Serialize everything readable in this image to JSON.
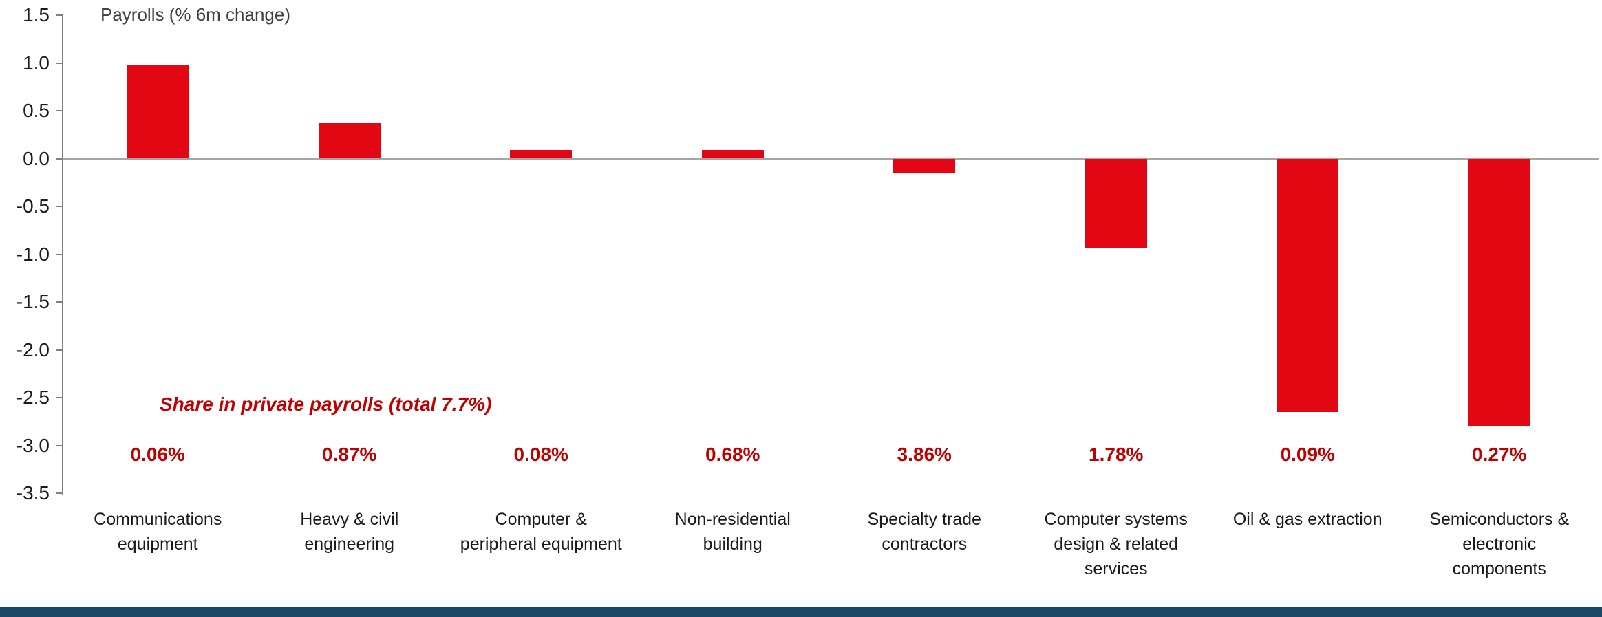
{
  "chart_data": {
    "type": "bar",
    "title": "Payrolls (% 6m change)",
    "categories": [
      "Communications equipment",
      "Heavy & civil engineering",
      "Computer & peripheral equipment",
      "Non-residential building",
      "Specialty trade contractors",
      "Computer systems design & related services",
      "Oil & gas extraction",
      "Semiconductors & electronic components"
    ],
    "category_lines": [
      [
        "Communications",
        "equipment"
      ],
      [
        "Heavy & civil",
        "engineering"
      ],
      [
        "Computer &",
        "peripheral equipment"
      ],
      [
        "Non-residential",
        "building"
      ],
      [
        "Specialty trade",
        "contractors"
      ],
      [
        "Computer systems",
        "design & related",
        "services"
      ],
      [
        "Oil & gas extraction"
      ],
      [
        "Semiconductors &",
        "electronic",
        "components"
      ]
    ],
    "values": [
      0.98,
      0.37,
      0.09,
      0.09,
      -0.15,
      -0.93,
      -2.65,
      -2.8
    ],
    "xlabel": "",
    "ylabel": "",
    "ylim": [
      -3.5,
      1.5
    ],
    "yticks": [
      1.5,
      1.0,
      0.5,
      0.0,
      -0.5,
      -1.0,
      -1.5,
      -2.0,
      -2.5,
      -3.0,
      -3.5
    ],
    "grid": false,
    "legend": "none",
    "bar_color": "#e30613",
    "annotation": "Share in private payrolls (total 7.7%)",
    "share_labels": [
      "0.06%",
      "0.87%",
      "0.08%",
      "0.68%",
      "3.86%",
      "1.78%",
      "0.09%",
      "0.27%"
    ],
    "share_color": "#c00000"
  },
  "footer": {
    "bar_color": "#1c4666"
  }
}
